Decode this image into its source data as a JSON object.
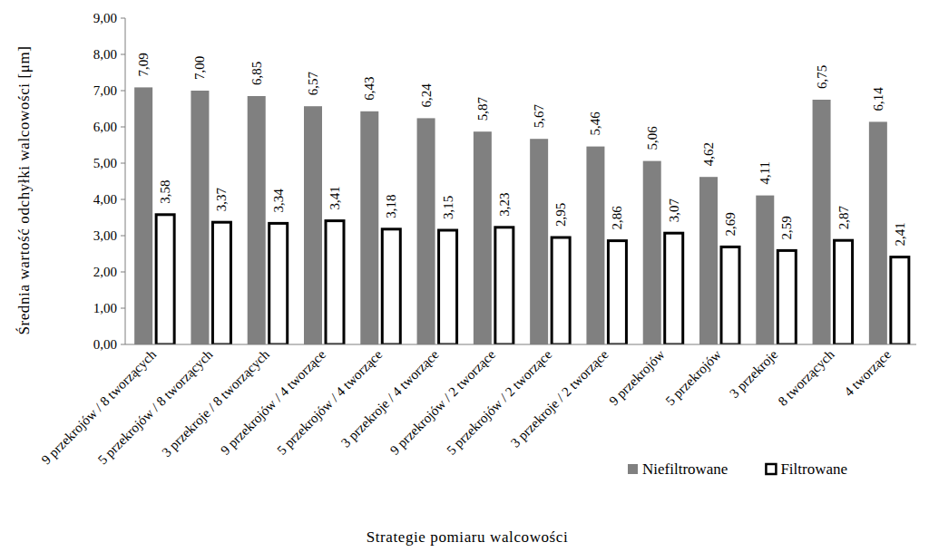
{
  "chart_data": {
    "type": "bar",
    "y_label": "Średnia wartość odchyłki walcowości [μm]",
    "x_label": "Strategie pomiaru walcowości",
    "categories": [
      "9 przekrojów / 8 tworzących",
      "5 przekrojów / 8 tworzących",
      "3 przekroje / 8 tworzących",
      "9 przekrojów / 4 tworzące",
      "5 przekrojów / 4 tworzące",
      "3 przekroje / 4 tworzące",
      "9 przekrojów / 2 tworzące",
      "5 przekrojów / 2 tworzące",
      "3 przekroje / 2 tworzące",
      "9 przekrojów",
      "5 przekrojów",
      "3 przekroje",
      "8 tworzących",
      "4 tworzące"
    ],
    "series": [
      {
        "name": "Niefiltrowane",
        "color": "#808080",
        "values": [
          7.09,
          7.0,
          6.85,
          6.57,
          6.43,
          6.24,
          5.87,
          5.67,
          5.46,
          5.06,
          4.62,
          4.11,
          6.75,
          6.14
        ],
        "value_labels": [
          "7,09",
          "7,00",
          "6,85",
          "6,57",
          "6,43",
          "6,24",
          "5,87",
          "5,67",
          "5,46",
          "5,06",
          "4,62",
          "4,11",
          "6,75",
          "6,14"
        ]
      },
      {
        "name": "Filtrowane",
        "color": "#ffffff",
        "values": [
          3.58,
          3.37,
          3.34,
          3.41,
          3.18,
          3.15,
          3.23,
          2.95,
          2.86,
          3.07,
          2.69,
          2.59,
          2.87,
          2.41
        ],
        "value_labels": [
          "3,58",
          "3,37",
          "3,34",
          "3,41",
          "3,18",
          "3,15",
          "3,23",
          "2,95",
          "2,86",
          "3,07",
          "2,69",
          "2,59",
          "2,87",
          "2,41"
        ]
      }
    ],
    "ylim": [
      0,
      9
    ],
    "yticks": [
      {
        "value": 0,
        "label": "0,00"
      },
      {
        "value": 1,
        "label": "1,00"
      },
      {
        "value": 2,
        "label": "2,00"
      },
      {
        "value": 3,
        "label": "3,00"
      },
      {
        "value": 4,
        "label": "4,00"
      },
      {
        "value": 5,
        "label": "5,00"
      },
      {
        "value": 6,
        "label": "6,00"
      },
      {
        "value": 7,
        "label": "7,00"
      },
      {
        "value": 8,
        "label": "8,00"
      },
      {
        "value": 9,
        "label": "9,00"
      }
    ],
    "grid": false,
    "legend": "bottom-right",
    "data_labels": true
  }
}
